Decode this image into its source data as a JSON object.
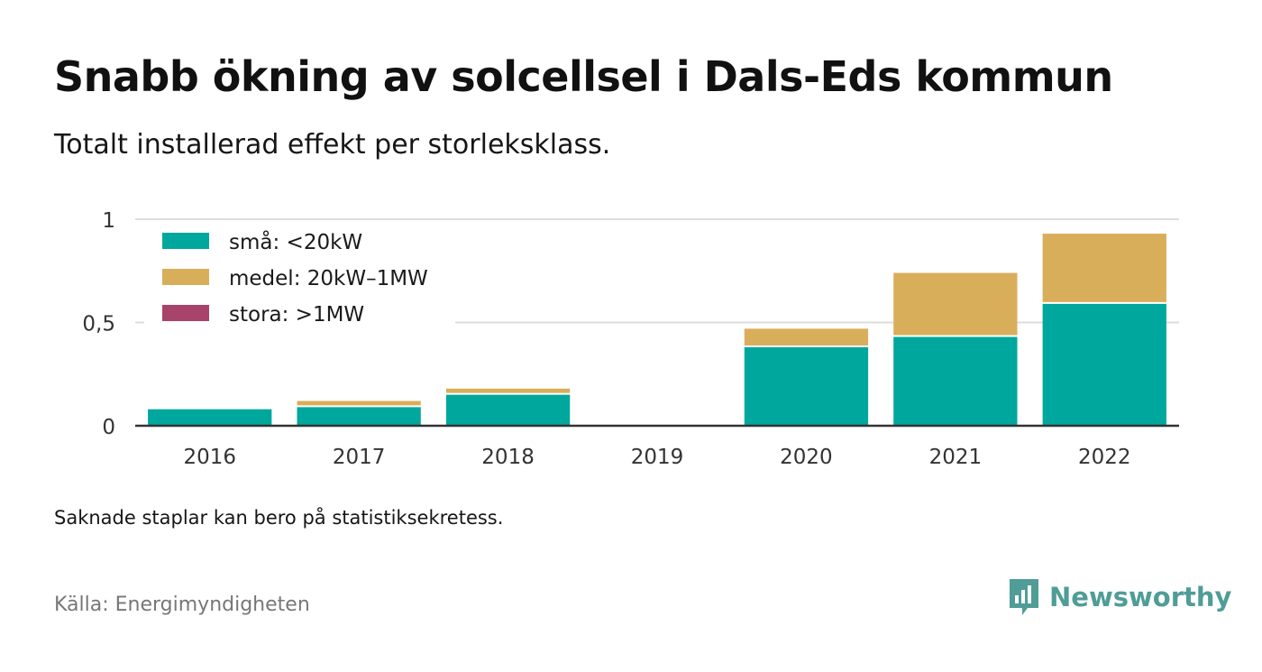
{
  "header": {
    "title": "Snabb ökning av solcellsel i Dals-Eds kommun",
    "subtitle": "Totalt installerad effekt per storleksklass."
  },
  "footer": {
    "note": "Saknade staplar kan bero på statistiksekretess.",
    "source": "Källa: Energimyndigheten",
    "brand": "Newsworthy"
  },
  "colors": {
    "small": "#00a79d",
    "medium": "#d9ae5b",
    "large": "#a8436b",
    "grid": "#dddddd",
    "axis": "#333333",
    "brand": "#4f9d96"
  },
  "chart_data": {
    "type": "bar",
    "stacked": true,
    "categories": [
      "2016",
      "2017",
      "2018",
      "2019",
      "2020",
      "2021",
      "2022"
    ],
    "series": [
      {
        "name": "små: <20kW",
        "color": "#00a79d",
        "values": [
          0.08,
          0.09,
          0.15,
          null,
          0.38,
          0.43,
          0.59
        ]
      },
      {
        "name": "medel: 20kW–1MW",
        "color": "#d9ae5b",
        "values": [
          0.0,
          0.03,
          0.03,
          null,
          0.09,
          0.31,
          0.34
        ]
      },
      {
        "name": "stora: >1MW",
        "color": "#a8436b",
        "values": [
          0,
          0,
          0,
          null,
          0,
          0,
          0
        ]
      }
    ],
    "yticks": [
      {
        "value": 0,
        "label": "0"
      },
      {
        "value": 0.5,
        "label": "0,5"
      },
      {
        "value": 1,
        "label": "1"
      }
    ],
    "ylim": [
      0,
      1
    ],
    "grid": true,
    "legend_position": "top-left"
  }
}
